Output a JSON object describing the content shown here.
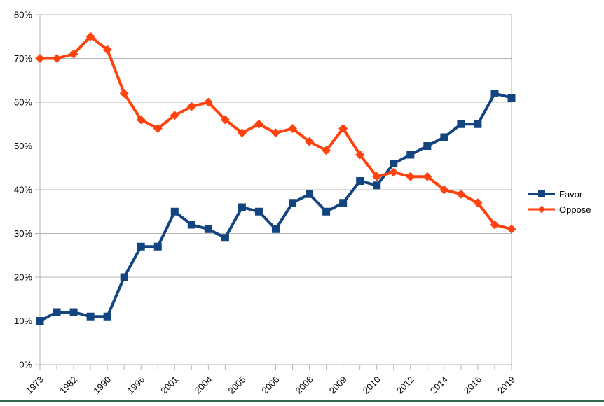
{
  "chart_data": {
    "type": "line",
    "title": "",
    "xlabel": "",
    "ylabel": "",
    "ylim": [
      0,
      80
    ],
    "grid": true,
    "legend_position": "right",
    "y_tick_labels": [
      "0%",
      "10%",
      "20%",
      "30%",
      "40%",
      "50%",
      "60%",
      "70%",
      "80%"
    ],
    "x_tick_labels": [
      "1973",
      "",
      "1982",
      "",
      "1990",
      "",
      "1996",
      "",
      "2001",
      "",
      "2004",
      "",
      "2005",
      "",
      "2006",
      "",
      "2008",
      "",
      "2009",
      "",
      "2010",
      "",
      "2012",
      "",
      "2014",
      "",
      "2016",
      "",
      "2019"
    ],
    "series": [
      {
        "name": "Favor",
        "marker": "square",
        "color": "#12457f",
        "values": [
          10,
          12,
          12,
          11,
          11,
          20,
          27,
          27,
          35,
          32,
          31,
          29,
          36,
          35,
          31,
          37,
          39,
          35,
          37,
          42,
          41,
          46,
          48,
          50,
          52,
          55,
          55,
          62,
          61
        ]
      },
      {
        "name": "Oppose",
        "marker": "diamond",
        "color": "#ff420e",
        "values": [
          70,
          70,
          71,
          75,
          72,
          62,
          56,
          54,
          57,
          59,
          60,
          56,
          53,
          55,
          53,
          54,
          51,
          49,
          54,
          48,
          43,
          44,
          43,
          43,
          40,
          39,
          37,
          32,
          31
        ]
      }
    ]
  },
  "colors": {
    "background": "#ffffff",
    "gridline": "#b3b3b3",
    "axis": "#b3b3b3",
    "tick_text": "#000000",
    "bottom_border": "#35694d"
  }
}
